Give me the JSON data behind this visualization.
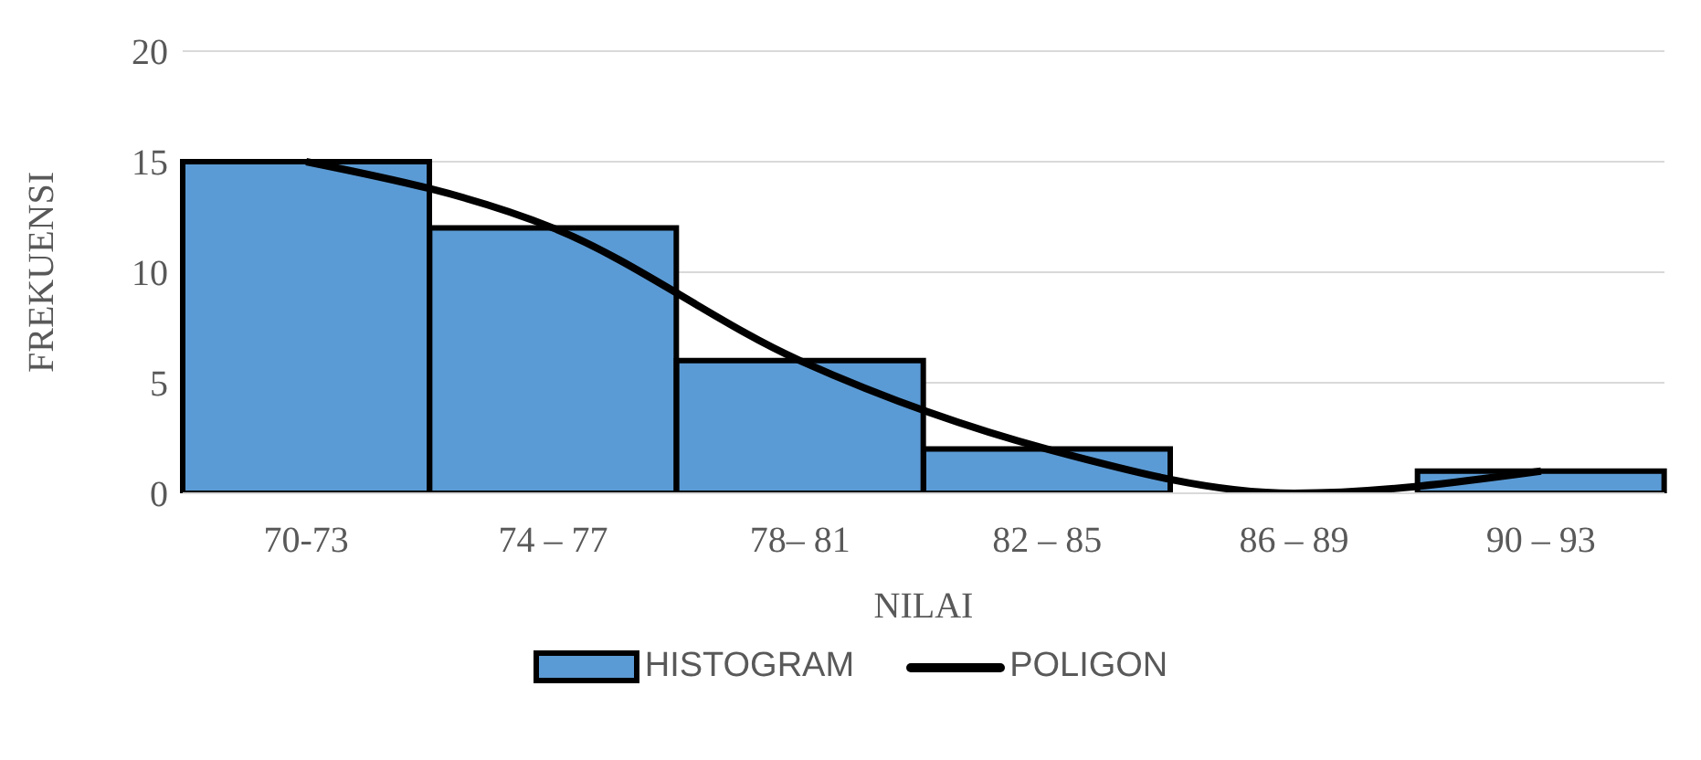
{
  "chart_data": {
    "type": "bar",
    "xlabel": "NILAI",
    "ylabel": "FREKUENSI",
    "categories": [
      "70-73",
      "74 – 77",
      "78– 81",
      "82 – 85",
      "86 – 89",
      "90 – 93"
    ],
    "series": [
      {
        "name": "HISTOGRAM",
        "color": "#5b9bd5",
        "values": [
          15,
          12,
          6,
          2,
          0,
          1
        ]
      },
      {
        "name": "POLIGON",
        "type": "line",
        "color": "#000000",
        "values": [
          15,
          12,
          6,
          2,
          0,
          1
        ]
      }
    ],
    "ylim": [
      0,
      20
    ],
    "yticks": [
      0,
      5,
      10,
      15,
      20
    ],
    "grid": "y",
    "legend": "bottom",
    "marker": "none"
  }
}
